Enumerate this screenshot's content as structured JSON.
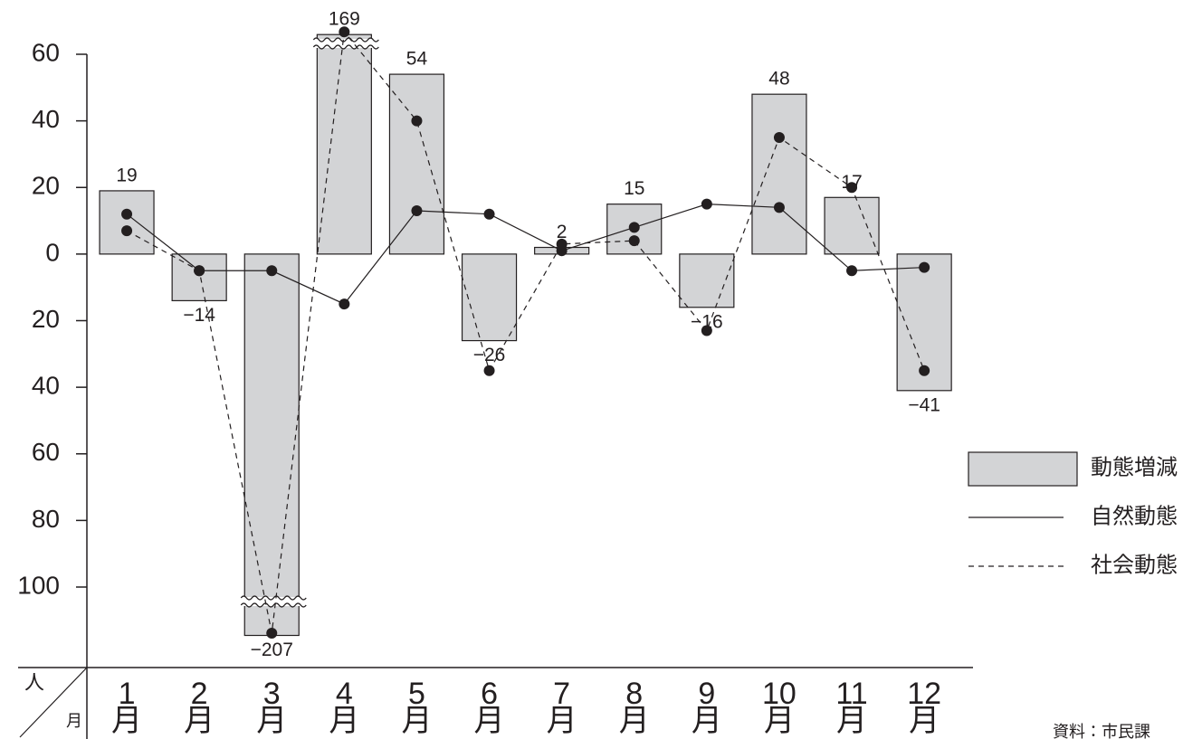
{
  "chart_data": {
    "type": "bar",
    "categories": [
      "1月",
      "2月",
      "3月",
      "4月",
      "5月",
      "6月",
      "7月",
      "8月",
      "9月",
      "10月",
      "11月",
      "12月"
    ],
    "series": [
      {
        "name": "動態増減",
        "type": "bar",
        "color": "#d3d4d6",
        "values": [
          19,
          -14,
          -207,
          169,
          54,
          -26,
          2,
          15,
          -16,
          48,
          17,
          -41
        ],
        "value_labels": [
          "19",
          "−14",
          "−207",
          "169",
          "54",
          "−26",
          "2",
          "15",
          "−16",
          "48",
          "17",
          "−41"
        ]
      },
      {
        "name": "自然動態",
        "type": "line",
        "color": "#231f20",
        "line_style": "solid",
        "values": [
          12,
          -5,
          -5,
          -15,
          13,
          12,
          1,
          8,
          15,
          14,
          -5,
          -4
        ]
      },
      {
        "name": "社会動態",
        "type": "line",
        "color": "#231f20",
        "line_style": "dashed",
        "values": [
          7,
          -5,
          -202,
          184,
          40,
          -35,
          3,
          4,
          -23,
          35,
          20,
          -35
        ]
      }
    ],
    "ylim": [
      -100,
      60
    ],
    "yticks": [
      {
        "value": 60,
        "label": "60"
      },
      {
        "value": 40,
        "label": "40"
      },
      {
        "value": 20,
        "label": "20"
      },
      0,
      {
        "value": -20,
        "label": "20"
      },
      {
        "value": -40,
        "label": "40"
      },
      {
        "value": -60,
        "label": "60"
      },
      {
        "value": -80,
        "label": "80"
      },
      {
        "value": -100,
        "label": "100"
      }
    ],
    "y_unit": "人",
    "x_unit": "月",
    "grid": false,
    "legend": "right",
    "source": "資料：市民課"
  }
}
